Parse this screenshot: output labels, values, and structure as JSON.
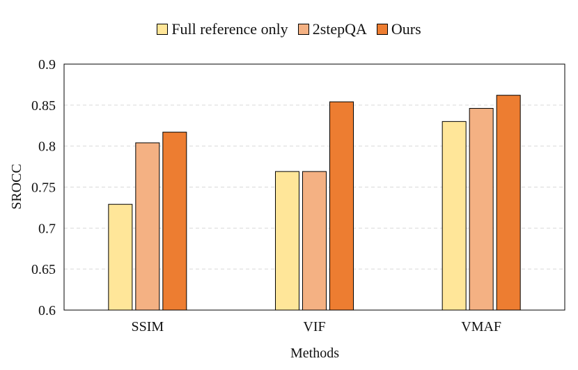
{
  "chart_data": {
    "type": "bar",
    "title": "",
    "xlabel": "Methods",
    "ylabel": "SROCC",
    "ylim": [
      0.6,
      0.9
    ],
    "yticks": [
      0.6,
      0.65,
      0.7,
      0.75,
      0.8,
      0.85,
      0.9
    ],
    "ytick_labels": [
      "0.6",
      "0.65",
      "0.7",
      "0.75",
      "0.8",
      "0.85",
      "0.9"
    ],
    "grid": true,
    "legend_position": "top-center",
    "categories": [
      "SSIM",
      "VIF",
      "VMAF"
    ],
    "series": [
      {
        "name": "Full reference only",
        "color": "#FFE699",
        "values": [
          0.729,
          0.769,
          0.83
        ]
      },
      {
        "name": "2stepQA",
        "color": "#F4B183",
        "values": [
          0.804,
          0.769,
          0.846
        ]
      },
      {
        "name": "Ours",
        "color": "#ED7D31",
        "values": [
          0.817,
          0.854,
          0.862
        ]
      }
    ]
  }
}
